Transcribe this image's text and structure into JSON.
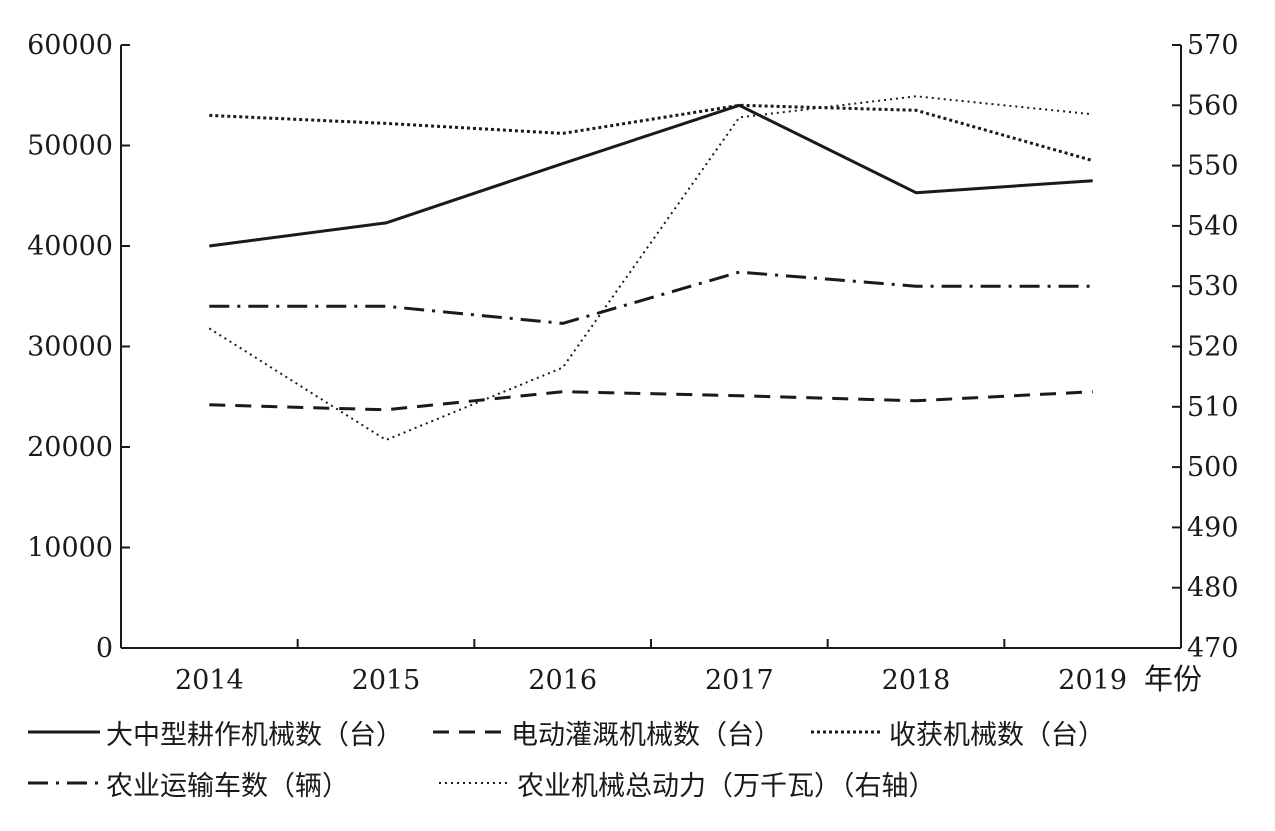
{
  "chart_data": {
    "type": "line",
    "x_unit": "年份",
    "categories": [
      "2014",
      "2015",
      "2016",
      "2017",
      "2018",
      "2019"
    ],
    "left_axis": {
      "min": 0,
      "max": 60000,
      "ticks": [
        "0",
        "10000",
        "20000",
        "30000",
        "40000",
        "50000",
        "60000"
      ]
    },
    "right_axis": {
      "min": 470,
      "max": 570,
      "ticks": [
        "470",
        "480",
        "490",
        "500",
        "510",
        "520",
        "530",
        "540",
        "550",
        "560",
        "570"
      ]
    },
    "series": [
      {
        "name": "大中型耕作机械数（台）",
        "axis": "left",
        "style": "solid",
        "values": [
          40000,
          42300,
          48200,
          54000,
          45300,
          46500
        ]
      },
      {
        "name": "电动灌溉机械数（台）",
        "axis": "left",
        "style": "dash",
        "values": [
          24200,
          23700,
          25500,
          25100,
          24600,
          25500
        ]
      },
      {
        "name": "收获机械数（台）",
        "axis": "left",
        "style": "dense-dot",
        "values": [
          53000,
          52200,
          51200,
          54000,
          53500,
          48500
        ]
      },
      {
        "name": "农业运输车数（辆）",
        "axis": "left",
        "style": "dash-dot",
        "values": [
          34000,
          34000,
          32300,
          37400,
          36000,
          36000
        ]
      },
      {
        "name": "农业机械总动力（万千瓦）（右轴）",
        "axis": "right",
        "style": "dot",
        "values": [
          523,
          504.5,
          516.5,
          558,
          561.5,
          558.5
        ]
      }
    ]
  }
}
